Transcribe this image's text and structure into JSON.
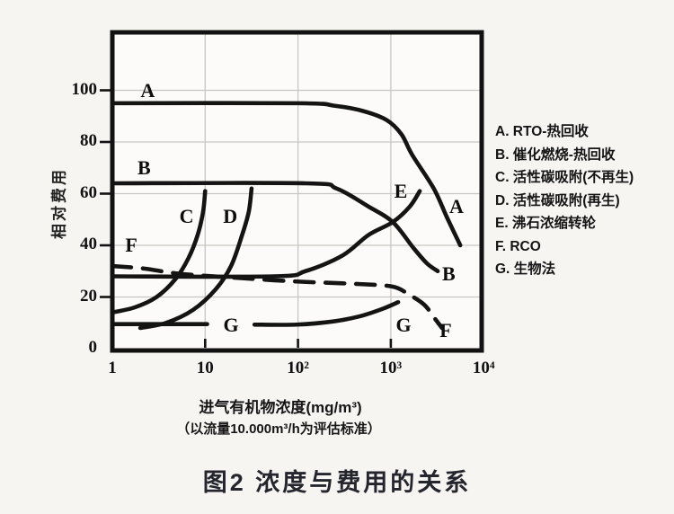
{
  "caption": "图2 浓度与费用的关系",
  "legend": {
    "items": [
      "A. RTO-热回收",
      "B. 催化燃烧-热回收",
      "C. 活性碳吸附(不再生)",
      "D. 活性碳吸附(再生)",
      "E. 沸石浓缩转轮",
      "F. RCO",
      "G. 生物法"
    ]
  },
  "colors": {
    "curve": "#141414",
    "grid": "#c8c6c3",
    "frame": "#121212",
    "background": "#f6f5f2",
    "plot_background": "#fcfbf9",
    "caption": "#25252e"
  },
  "chart_data": {
    "type": "line",
    "title": "图2 浓度与费用的关系",
    "xlabel": "进气有机物浓度(mg/m³)",
    "x_sublabel": "（以流量10.000m³/h为评估标准）",
    "ylabel": "相对费用",
    "x_scale": "log",
    "xlim": [
      1,
      10000
    ],
    "ylim": [
      0,
      122
    ],
    "grid": "on",
    "legend_position": "right",
    "grid_x_values": [
      10,
      100,
      1000
    ],
    "grid_y_values": [
      20,
      40,
      60,
      80,
      100
    ],
    "x_ticks": [
      {
        "label": "1",
        "value": 1
      },
      {
        "label": "10",
        "value": 10
      },
      {
        "label": "10²",
        "value": 100
      },
      {
        "label": "10³",
        "value": 1000
      },
      {
        "label": "10⁴",
        "value": 10000
      }
    ],
    "y_ticks": [
      {
        "label": "0",
        "value": 0
      },
      {
        "label": "20",
        "value": 20
      },
      {
        "label": "40",
        "value": 40
      },
      {
        "label": "60",
        "value": 60
      },
      {
        "label": "80",
        "value": 80
      },
      {
        "label": "100",
        "value": 100
      }
    ],
    "series": [
      {
        "name": "A",
        "legend": "A. RTO-热回收",
        "style": "solid",
        "paths": [
          [
            [
              1,
              95
            ],
            [
              100,
              95
            ],
            [
              250,
              94
            ],
            [
              500,
              92
            ],
            [
              900,
              88.5
            ],
            [
              1300,
              83
            ],
            [
              1700,
              75
            ],
            [
              2900,
              62
            ],
            [
              4000,
              51
            ],
            [
              5600,
              40
            ]
          ]
        ]
      },
      {
        "name": "B",
        "legend": "B. 催化燃烧-热回收",
        "style": "solid",
        "paths": [
          [
            [
              1,
              64
            ],
            [
              120,
              64
            ],
            [
              260,
              62
            ],
            [
              575,
              55
            ],
            [
              1050,
              49
            ],
            [
              1750,
              39
            ],
            [
              2450,
              33
            ],
            [
              3200,
              30
            ]
          ]
        ]
      },
      {
        "name": "C",
        "legend": "C. 活性碳吸附(不再生)",
        "style": "solid",
        "paths": [
          [
            [
              1,
              14
            ],
            [
              1.75,
              16
            ],
            [
              3,
              20
            ],
            [
              4.8,
              27
            ],
            [
              6.6,
              35
            ],
            [
              8.3,
              44
            ],
            [
              9.5,
              53
            ],
            [
              10,
              61
            ]
          ]
        ]
      },
      {
        "name": "D",
        "legend": "D. 活性碳吸附(再生)",
        "style": "solid",
        "paths": [
          [
            [
              2,
              8
            ],
            [
              3.8,
              10
            ],
            [
              7.4,
              15
            ],
            [
              13,
              23
            ],
            [
              19,
              32
            ],
            [
              25,
              44
            ],
            [
              29.5,
              53
            ],
            [
              31.6,
              62
            ]
          ]
        ]
      },
      {
        "name": "E",
        "legend": "E. 沸石浓缩转轮",
        "style": "solid",
        "paths": [
          [
            [
              1,
              28
            ],
            [
              55,
              28
            ],
            [
              120,
              30
            ],
            [
              300,
              36
            ],
            [
              575,
              44
            ],
            [
              1050,
              49
            ],
            [
              1600,
              55
            ],
            [
              2050,
              61
            ]
          ]
        ]
      },
      {
        "name": "F",
        "legend": "F. RCO",
        "style": "dashed",
        "paths": [
          [
            [
              1,
              32
            ],
            [
              2.2,
              31
            ],
            [
              5.3,
              29
            ],
            [
              20,
              27.5
            ],
            [
              96,
              26
            ],
            [
              460,
              25
            ],
            [
              1050,
              24
            ],
            [
              1560,
              21
            ],
            [
              2290,
              17
            ],
            [
              2930,
              12
            ],
            [
              3560,
              8
            ]
          ]
        ]
      },
      {
        "name": "G",
        "legend": "G. 生物法",
        "style": "solid",
        "paths": [
          [
            [
              1,
              9.5
            ],
            [
              10.5,
              9.5
            ]
          ],
          [
            [
              34,
              9.3
            ],
            [
              96,
              9.3
            ],
            [
              235,
              10.5
            ],
            [
              460,
              12.5
            ],
            [
              800,
              15.3
            ],
            [
              1200,
              18
            ]
          ]
        ]
      }
    ],
    "curve_labels": [
      {
        "text": "A",
        "x": 2.4,
        "y": 100
      },
      {
        "text": "B",
        "x": 2.2,
        "y": 70
      },
      {
        "text": "C",
        "x": 6.3,
        "y": 51
      },
      {
        "text": "D",
        "x": 18.6,
        "y": 51
      },
      {
        "text": "F",
        "x": 1.6,
        "y": 40
      },
      {
        "text": "E",
        "x": 1280,
        "y": 61
      },
      {
        "text": "A",
        "x": 5100,
        "y": 55
      },
      {
        "text": "B",
        "x": 4200,
        "y": 29
      },
      {
        "text": "G",
        "x": 19,
        "y": 9
      },
      {
        "text": "G",
        "x": 1370,
        "y": 9
      },
      {
        "text": "F",
        "x": 3900,
        "y": 7
      }
    ]
  }
}
